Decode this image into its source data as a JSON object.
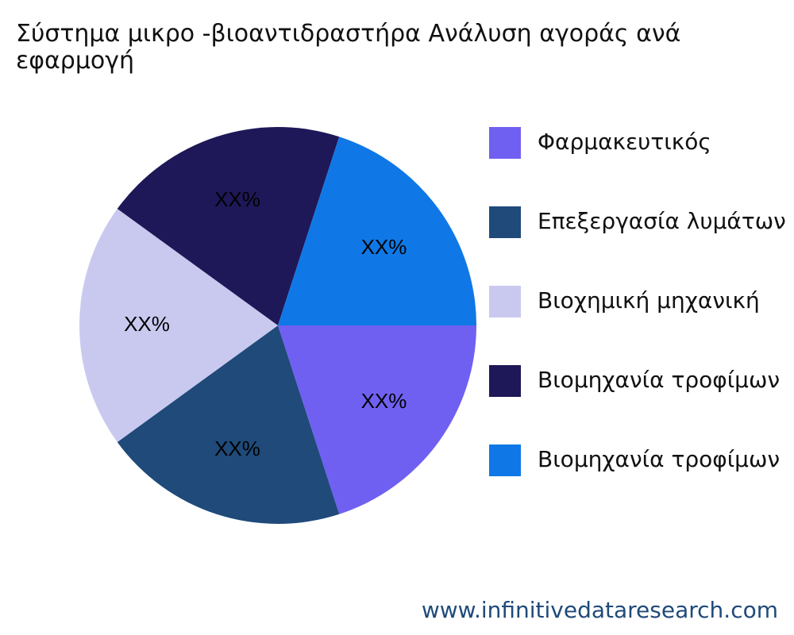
{
  "chart_data": {
    "type": "pie",
    "title": "Σύστημα μικρο -βιοαντιδραστήρα Ανάλυση αγοράς ανά εφαρμογή",
    "categories": [
      "Φαρμακευτικός",
      "Επεξεργασία λυμάτων",
      "Βιοχημική μηχανική",
      "Βιομηχανία τροφίμων",
      "Βιομηχανία τροφίμων"
    ],
    "values": [
      20,
      20,
      20,
      20,
      20
    ],
    "value_labels": [
      "XX%",
      "XX%",
      "XX%",
      "XX%",
      "XX%"
    ],
    "colors": [
      "#7060f2",
      "#1f4a7a",
      "#c9c9f0",
      "#1e1858",
      "#0f78e6"
    ],
    "legend": "right",
    "source": "www.infinitivedataresearch.com"
  }
}
